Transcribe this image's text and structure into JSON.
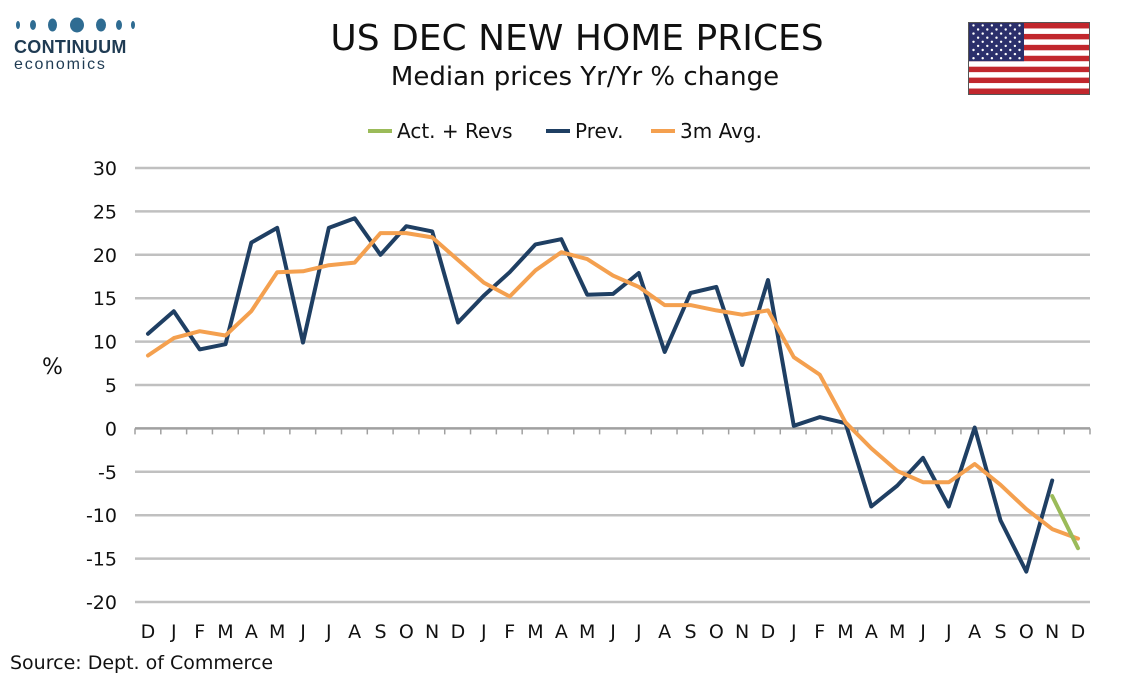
{
  "logo": {
    "name": "CONTINUUM",
    "sub": "economics"
  },
  "flag_icon": "us-flag-icon",
  "source": "Source: Dept. of Commerce",
  "colors": {
    "actual": "#9bbb59",
    "prev": "#1f3f63",
    "avg": "#f4a04f",
    "grid": "#c0c0c0"
  },
  "chart_data": {
    "type": "line",
    "title": "US DEC NEW HOME PRICES",
    "subtitle": "Median prices Yr/Yr % change",
    "xlabel": "",
    "ylabel": "%",
    "ylim": [
      -20,
      30
    ],
    "yticks": [
      30,
      25,
      20,
      15,
      10,
      5,
      0,
      -5,
      -10,
      -15,
      -20
    ],
    "grid": true,
    "legend_position": "top-center",
    "categories": [
      "D",
      "J",
      "F",
      "M",
      "A",
      "M",
      "J",
      "J",
      "A",
      "S",
      "O",
      "N",
      "D",
      "J",
      "F",
      "M",
      "A",
      "M",
      "J",
      "J",
      "A",
      "S",
      "O",
      "N",
      "D",
      "J",
      "F",
      "M",
      "A",
      "M",
      "J",
      "J",
      "A",
      "S",
      "O",
      "N",
      "D"
    ],
    "series": [
      {
        "name": "Act. + Revs",
        "color": "#9bbb59",
        "values": [
          null,
          null,
          null,
          null,
          null,
          null,
          null,
          null,
          null,
          null,
          null,
          null,
          null,
          null,
          null,
          null,
          null,
          null,
          null,
          null,
          null,
          null,
          null,
          null,
          null,
          null,
          null,
          null,
          null,
          null,
          null,
          null,
          null,
          null,
          null,
          -7.8,
          -13.8
        ]
      },
      {
        "name": "Prev.",
        "color": "#1f3f63",
        "values": [
          10.9,
          13.5,
          9.1,
          9.7,
          21.4,
          23.1,
          9.9,
          23.1,
          24.2,
          20.0,
          23.3,
          22.7,
          12.2,
          15.3,
          18.0,
          21.2,
          21.8,
          15.4,
          15.5,
          17.9,
          8.8,
          15.6,
          16.3,
          7.3,
          17.1,
          0.3,
          1.3,
          0.6,
          -9.0,
          -6.6,
          -3.4,
          -9.0,
          0.1,
          -10.6,
          -16.5,
          -6.0,
          null
        ]
      },
      {
        "name": "3m Avg.",
        "color": "#f4a04f",
        "values": [
          8.4,
          10.4,
          11.2,
          10.7,
          13.5,
          18.0,
          18.1,
          18.8,
          19.1,
          22.5,
          22.5,
          22.0,
          19.4,
          16.8,
          15.2,
          18.2,
          20.3,
          19.5,
          17.6,
          16.3,
          14.2,
          14.2,
          13.6,
          13.1,
          13.6,
          8.2,
          6.2,
          0.7,
          -2.3,
          -4.9,
          -6.2,
          -6.2,
          -4.1,
          -6.5,
          -9.3,
          -11.6,
          -12.7
        ]
      }
    ]
  }
}
